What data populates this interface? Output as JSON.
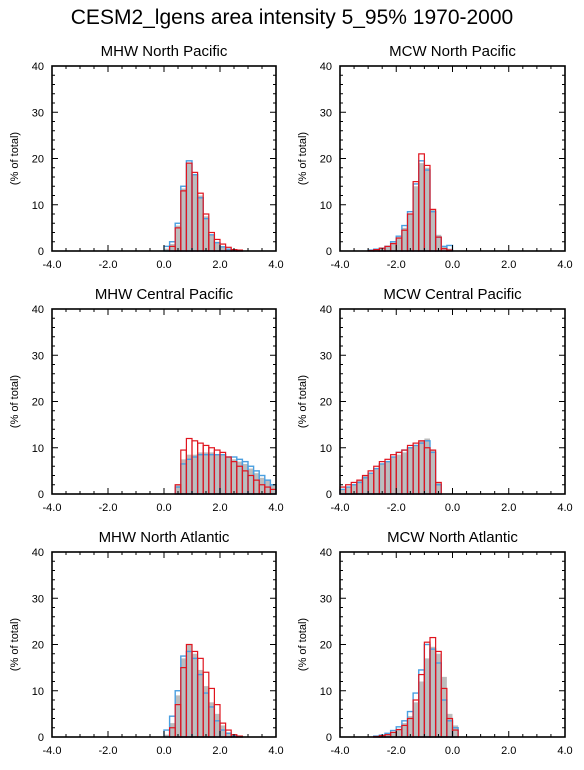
{
  "title": "CESM2_lgens area intensity 5_95% 1970-2000",
  "colors": {
    "gray_hist": "#bdbdbd",
    "blue_hist": "#4a9fe0",
    "red_hist": "#e0141e",
    "axis": "#000000"
  },
  "chart_data": [
    {
      "type": "bar",
      "title": "MHW North Pacific",
      "ylabel": "(% of total)",
      "xlim": [
        -4,
        4
      ],
      "ylim": [
        0,
        40
      ],
      "xticks": [
        "-4.0",
        "-2.0",
        "0.0",
        "2.0",
        "4.0"
      ],
      "yticks": [
        "0",
        "10",
        "20",
        "30",
        "40"
      ],
      "bin_width": 0.2,
      "bin_start": 0.0,
      "series": [
        {
          "values": [
            0.5,
            1.5,
            5.5,
            13.5,
            19.0,
            16.5,
            12.0,
            7.5,
            3.5,
            2.0,
            1.0,
            0.5,
            0.3,
            0.1
          ]
        },
        {
          "values": [
            1.0,
            2.0,
            6.0,
            14.0,
            19.5,
            16.5,
            11.5,
            7.0,
            3.5,
            1.8,
            0.9,
            0.4,
            0.2,
            0.1
          ]
        },
        {
          "values": [
            0.0,
            1.0,
            5.0,
            13.0,
            19.0,
            17.0,
            12.5,
            8.0,
            4.0,
            2.5,
            1.5,
            0.8,
            0.3,
            0.2
          ]
        }
      ]
    },
    {
      "type": "bar",
      "title": "MCW North Pacific",
      "ylabel": "(% of total)",
      "xlim": [
        -4,
        4
      ],
      "ylim": [
        0,
        40
      ],
      "xticks": [
        "-4.0",
        "-2.0",
        "0.0",
        "2.0",
        "4.0"
      ],
      "yticks": [
        "0",
        "10",
        "20",
        "30",
        "40"
      ],
      "bin_width": 0.2,
      "bin_start": -3.0,
      "series": [
        {
          "values": [
            0.2,
            0.3,
            0.6,
            1.0,
            1.8,
            3.0,
            5.0,
            8.0,
            14.0,
            19.0,
            18.0,
            9.0,
            3.5,
            1.0,
            0.5
          ]
        },
        {
          "values": [
            0.2,
            0.4,
            0.6,
            1.0,
            2.0,
            3.2,
            5.5,
            8.5,
            14.5,
            19.5,
            17.5,
            8.5,
            3.0,
            1.0,
            1.2
          ]
        },
        {
          "values": [
            0.1,
            0.3,
            0.6,
            1.0,
            1.6,
            2.8,
            4.5,
            8.0,
            15.0,
            21.0,
            18.5,
            9.0,
            3.0,
            0.5,
            0.2
          ]
        }
      ]
    },
    {
      "type": "bar",
      "title": "MHW Central Pacific",
      "ylabel": "(% of total)",
      "xlim": [
        -4,
        4
      ],
      "ylim": [
        0,
        40
      ],
      "xticks": [
        "-4.0",
        "-2.0",
        "0.0",
        "2.0",
        "4.0"
      ],
      "yticks": [
        "0",
        "10",
        "20",
        "30",
        "40"
      ],
      "bin_width": 0.2,
      "bin_start": 0.4,
      "series": [
        {
          "values": [
            2.0,
            7.5,
            8.5,
            8.5,
            9.0,
            9.0,
            9.0,
            8.5,
            8.5,
            8.0,
            7.5,
            7.0,
            6.5,
            5.5,
            4.5,
            3.5,
            3.0,
            2.0
          ]
        },
        {
          "values": [
            1.5,
            6.5,
            7.5,
            8.0,
            8.5,
            8.5,
            8.5,
            8.5,
            8.5,
            8.0,
            8.0,
            7.5,
            7.0,
            6.0,
            5.0,
            4.0,
            3.0,
            2.0
          ]
        },
        {
          "values": [
            2.0,
            9.5,
            12.0,
            11.5,
            11.0,
            10.5,
            10.0,
            9.5,
            9.0,
            8.0,
            7.0,
            6.0,
            5.0,
            4.0,
            3.0,
            2.0,
            1.5,
            1.0
          ]
        }
      ]
    },
    {
      "type": "bar",
      "title": "MCW Central Pacific",
      "ylabel": "(% of total)",
      "xlim": [
        -4,
        4
      ],
      "ylim": [
        0,
        40
      ],
      "xticks": [
        "-4.0",
        "-2.0",
        "0.0",
        "2.0",
        "4.0"
      ],
      "yticks": [
        "0",
        "10",
        "20",
        "30",
        "40"
      ],
      "bin_width": 0.2,
      "bin_start": -4.0,
      "series": [
        {
          "values": [
            1.0,
            1.5,
            2.0,
            3.0,
            4.0,
            4.5,
            5.5,
            6.5,
            7.0,
            8.0,
            8.5,
            9.0,
            10.0,
            10.5,
            11.5,
            12.0,
            9.5,
            2.5
          ]
        },
        {
          "values": [
            1.0,
            1.5,
            2.0,
            2.5,
            3.5,
            4.5,
            5.5,
            6.5,
            7.0,
            8.0,
            9.0,
            9.5,
            10.0,
            10.5,
            11.0,
            11.5,
            9.0,
            2.0
          ]
        },
        {
          "values": [
            1.5,
            2.0,
            2.5,
            3.0,
            4.0,
            5.0,
            6.0,
            7.0,
            7.5,
            8.5,
            9.0,
            9.5,
            10.5,
            11.0,
            11.5,
            10.0,
            9.5,
            2.5
          ]
        }
      ]
    },
    {
      "type": "bar",
      "title": "MHW North Atlantic",
      "ylabel": "(% of total)",
      "xlim": [
        -4,
        4
      ],
      "ylim": [
        0,
        40
      ],
      "xticks": [
        "-4.0",
        "-2.0",
        "0.0",
        "2.0",
        "4.0"
      ],
      "yticks": [
        "0",
        "10",
        "20",
        "30",
        "40"
      ],
      "bin_width": 0.2,
      "bin_start": 0.0,
      "series": [
        {
          "values": [
            0.5,
            3.0,
            9.0,
            17.0,
            20.0,
            18.0,
            14.5,
            11.0,
            7.5,
            5.0,
            2.5,
            1.0,
            0.5,
            0.2
          ]
        },
        {
          "values": [
            1.5,
            4.5,
            10.0,
            17.5,
            18.5,
            17.0,
            13.5,
            9.5,
            6.5,
            3.5,
            1.5,
            0.8,
            0.3,
            0.1
          ]
        },
        {
          "values": [
            0.0,
            2.0,
            7.0,
            15.0,
            20.0,
            18.5,
            17.0,
            14.0,
            10.5,
            7.0,
            3.0,
            1.5,
            0.5,
            0.2
          ]
        }
      ]
    },
    {
      "type": "bar",
      "title": "MCW North Atlantic",
      "ylabel": "(% of total)",
      "xlim": [
        -4,
        4
      ],
      "ylim": [
        0,
        40
      ],
      "xticks": [
        "-4.0",
        "-2.0",
        "0.0",
        "2.0",
        "4.0"
      ],
      "yticks": [
        "0",
        "10",
        "20",
        "30",
        "40"
      ],
      "bin_width": 0.2,
      "bin_start": -2.8,
      "series": [
        {
          "values": [
            0.2,
            0.3,
            0.6,
            1.0,
            1.8,
            3.0,
            4.5,
            7.5,
            12.0,
            17.0,
            19.5,
            18.0,
            13.0,
            5.0,
            2.5
          ]
        },
        {
          "values": [
            0.2,
            0.4,
            0.8,
            1.4,
            2.2,
            3.5,
            5.5,
            9.5,
            14.5,
            20.0,
            19.0,
            16.0,
            8.0,
            3.5,
            2.0
          ]
        },
        {
          "values": [
            0.1,
            0.3,
            0.5,
            1.0,
            1.6,
            2.5,
            4.0,
            8.0,
            13.5,
            20.5,
            21.5,
            18.5,
            10.5,
            4.0,
            1.5
          ]
        }
      ]
    }
  ]
}
